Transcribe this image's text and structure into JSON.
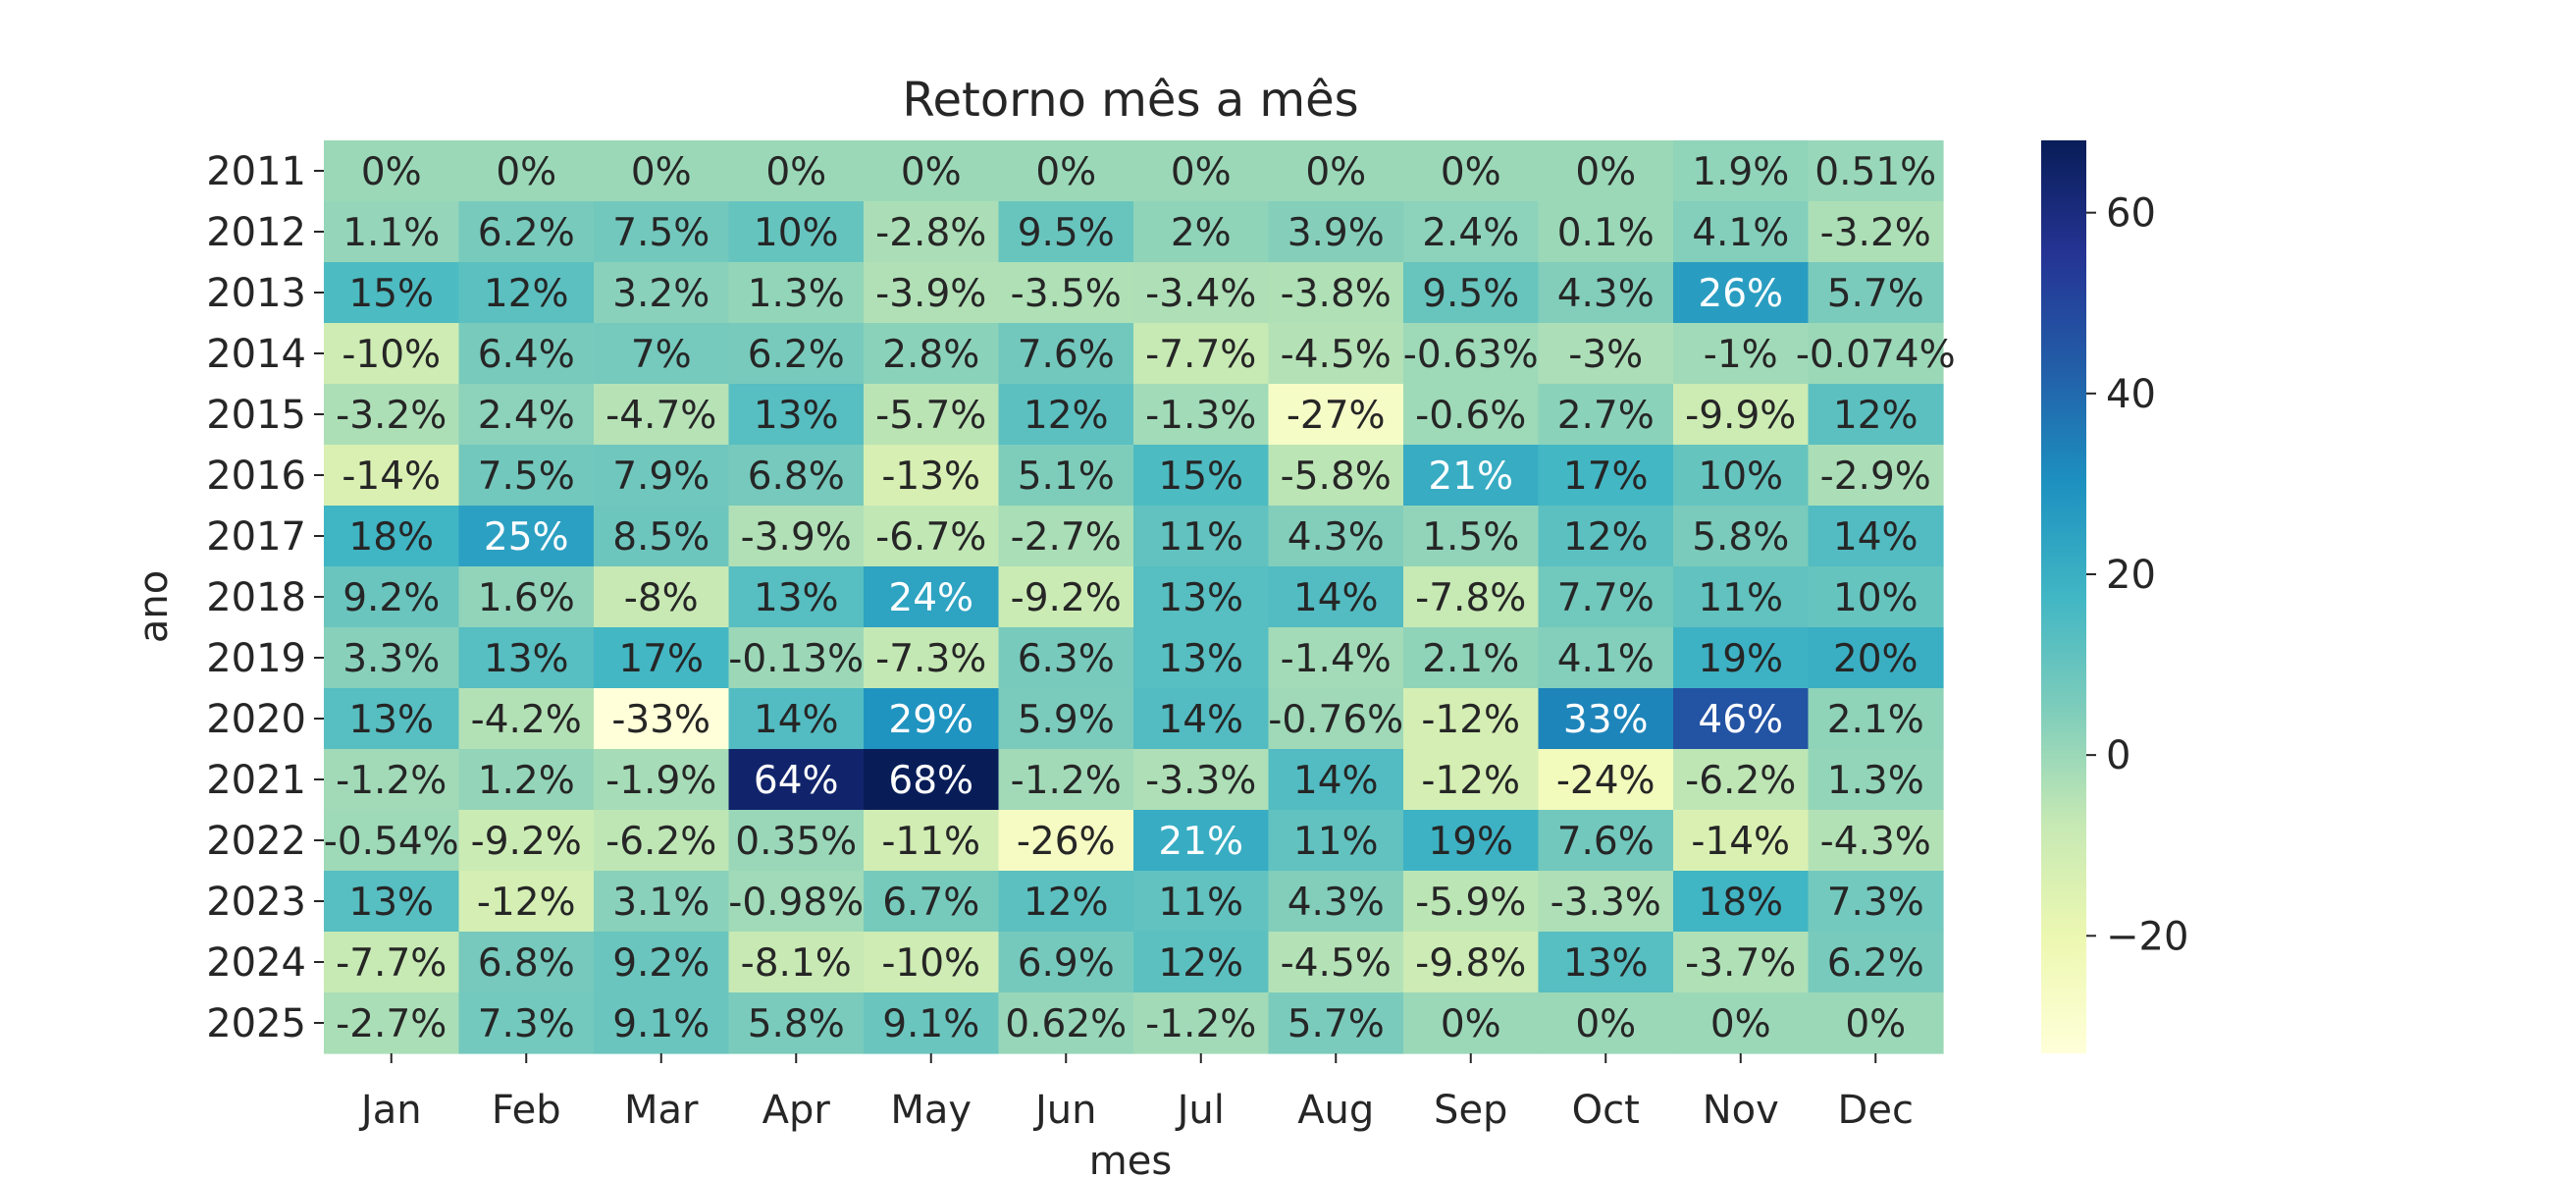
{
  "chart_data": {
    "type": "heatmap",
    "title": "Retorno mês a mês",
    "xlabel": "mes",
    "ylabel": "ano",
    "x_categories": [
      "Jan",
      "Feb",
      "Mar",
      "Apr",
      "May",
      "Jun",
      "Jul",
      "Aug",
      "Sep",
      "Oct",
      "Nov",
      "Dec"
    ],
    "y_categories": [
      "2011",
      "2012",
      "2013",
      "2014",
      "2015",
      "2016",
      "2017",
      "2018",
      "2019",
      "2020",
      "2021",
      "2022",
      "2023",
      "2024",
      "2025"
    ],
    "values": [
      [
        0,
        0,
        0,
        0,
        0,
        0,
        0,
        0,
        0,
        0,
        1.9,
        0.51
      ],
      [
        1.1,
        6.2,
        7.5,
        10,
        -2.8,
        9.5,
        2,
        3.9,
        2.4,
        0.1,
        4.1,
        -3.2
      ],
      [
        15,
        12,
        3.2,
        1.3,
        -3.9,
        -3.5,
        -3.4,
        -3.8,
        9.5,
        4.3,
        26,
        5.7
      ],
      [
        -10,
        6.4,
        7,
        6.2,
        2.8,
        7.6,
        -7.7,
        -4.5,
        -0.63,
        -3,
        -1,
        -0.074
      ],
      [
        -3.2,
        2.4,
        -4.7,
        13,
        -5.7,
        12,
        -1.3,
        -27,
        -0.6,
        2.7,
        -9.9,
        12
      ],
      [
        -14,
        7.5,
        7.9,
        6.8,
        -13,
        5.1,
        15,
        -5.8,
        21,
        17,
        10,
        -2.9
      ],
      [
        18,
        25,
        8.5,
        -3.9,
        -6.7,
        -2.7,
        11,
        4.3,
        1.5,
        12,
        5.8,
        14
      ],
      [
        9.2,
        1.6,
        -8,
        13,
        24,
        -9.2,
        13,
        14,
        -7.8,
        7.7,
        11,
        10
      ],
      [
        3.3,
        13,
        17,
        -0.13,
        -7.3,
        6.3,
        13,
        -1.4,
        2.1,
        4.1,
        19,
        20
      ],
      [
        13,
        -4.2,
        -33,
        14,
        29,
        5.9,
        14,
        -0.76,
        -12,
        33,
        46,
        2.1
      ],
      [
        -1.2,
        1.2,
        -1.9,
        64,
        68,
        -1.2,
        -3.3,
        14,
        -12,
        -24,
        -6.2,
        1.3
      ],
      [
        -0.54,
        -9.2,
        -6.2,
        0.35,
        -11,
        -26,
        21,
        11,
        19,
        7.6,
        -14,
        -4.3
      ],
      [
        13,
        -12,
        3.1,
        -0.98,
        6.7,
        12,
        11,
        4.3,
        -5.9,
        -3.3,
        18,
        7.3
      ],
      [
        -7.7,
        6.8,
        9.2,
        -8.1,
        -10,
        6.9,
        12,
        -4.5,
        -9.8,
        13,
        -3.7,
        6.2
      ],
      [
        -2.7,
        7.3,
        9.1,
        5.8,
        9.1,
        0.62,
        -1.2,
        5.7,
        0,
        0,
        0,
        0
      ]
    ],
    "value_suffix": "%",
    "colormap": "YlGnBu",
    "colorbar": {
      "range": [
        -33,
        68
      ],
      "ticks": [
        -20,
        0,
        20,
        40,
        60
      ],
      "tick_labels": [
        "−20",
        "0",
        "20",
        "40",
        "60"
      ],
      "placement": "right"
    },
    "grid": false,
    "legend": "none"
  }
}
